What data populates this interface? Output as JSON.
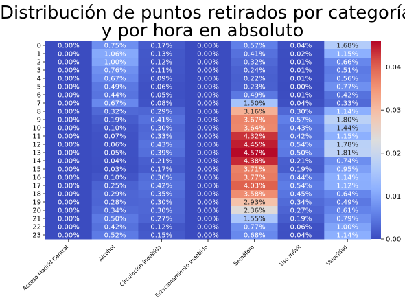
{
  "chart_data": {
    "type": "heatmap",
    "title_lines": [
      "Distribución de puntos retirados por categoría",
      "y por hora en absoluto"
    ],
    "xlabel": "",
    "ylabel": "",
    "columns": [
      "Acceso Madrid Central",
      "Alcohol",
      "Circulación Indebida",
      "Estacionamiento Indebido",
      "Semáforo",
      "Uso móvil",
      "Velocidad"
    ],
    "rows": [
      "0",
      "1",
      "2",
      "3",
      "4",
      "5",
      "6",
      "7",
      "8",
      "9",
      "10",
      "11",
      "12",
      "13",
      "14",
      "15",
      "16",
      "17",
      "18",
      "19",
      "20",
      "21",
      "22",
      "23"
    ],
    "values": [
      [
        0.0,
        0.0075,
        0.0017,
        0.0,
        0.0057,
        0.0004,
        0.0168
      ],
      [
        0.0,
        0.0106,
        0.0013,
        0.0,
        0.0041,
        0.0002,
        0.0115
      ],
      [
        0.0,
        0.01,
        0.0012,
        0.0,
        0.0032,
        0.0001,
        0.0066
      ],
      [
        0.0,
        0.0076,
        0.0011,
        0.0,
        0.0024,
        0.0001,
        0.0051
      ],
      [
        0.0,
        0.0067,
        0.0009,
        0.0,
        0.0022,
        0.0001,
        0.0056
      ],
      [
        0.0,
        0.0049,
        0.0006,
        0.0,
        0.0023,
        0.0,
        0.0077
      ],
      [
        0.0,
        0.0044,
        0.0005,
        0.0,
        0.0049,
        0.0001,
        0.0042
      ],
      [
        0.0,
        0.0067,
        0.0008,
        0.0,
        0.015,
        0.0004,
        0.0033
      ],
      [
        0.0,
        0.0032,
        0.0029,
        0.0,
        0.0316,
        0.003,
        0.0114
      ],
      [
        0.0,
        0.0019,
        0.0041,
        0.0,
        0.0367,
        0.0057,
        0.018
      ],
      [
        0.0,
        0.001,
        0.003,
        0.0,
        0.0364,
        0.0043,
        0.0144
      ],
      [
        0.0,
        0.0007,
        0.0033,
        0.0,
        0.0432,
        0.0042,
        0.0115
      ],
      [
        0.0,
        0.0006,
        0.0043,
        0.0,
        0.0445,
        0.0054,
        0.0178
      ],
      [
        0.0,
        0.0005,
        0.0039,
        0.0,
        0.0457,
        0.005,
        0.0181
      ],
      [
        0.0,
        0.0004,
        0.0021,
        0.0,
        0.0438,
        0.0021,
        0.0074
      ],
      [
        0.0,
        0.0003,
        0.0017,
        0.0,
        0.0371,
        0.0019,
        0.0095
      ],
      [
        0.0,
        0.001,
        0.0036,
        0.0,
        0.0377,
        0.0044,
        0.0114
      ],
      [
        0.0,
        0.0025,
        0.0042,
        0.0,
        0.0403,
        0.0054,
        0.0112
      ],
      [
        0.0,
        0.0029,
        0.0035,
        0.0,
        0.0358,
        0.0045,
        0.0064
      ],
      [
        0.0,
        0.0028,
        0.003,
        0.0,
        0.0293,
        0.0034,
        0.0049
      ],
      [
        0.0,
        0.0034,
        0.003,
        0.0,
        0.0236,
        0.0027,
        0.0061
      ],
      [
        0.0,
        0.005,
        0.0027,
        0.0,
        0.0155,
        0.0019,
        0.0079
      ],
      [
        0.0,
        0.0042,
        0.0012,
        0.0,
        0.0077,
        0.0006,
        0.01
      ],
      [
        0.0,
        0.0052,
        0.0015,
        0.0,
        0.0068,
        0.0004,
        0.0114
      ]
    ],
    "value_labels": [
      [
        "0.00%",
        "0.75%",
        "0.17%",
        "0.00%",
        "0.57%",
        "0.04%",
        "1.68%"
      ],
      [
        "0.00%",
        "1.06%",
        "0.13%",
        "0.00%",
        "0.41%",
        "0.02%",
        "1.15%"
      ],
      [
        "0.00%",
        "1.00%",
        "0.12%",
        "0.00%",
        "0.32%",
        "0.01%",
        "0.66%"
      ],
      [
        "0.00%",
        "0.76%",
        "0.11%",
        "0.00%",
        "0.24%",
        "0.01%",
        "0.51%"
      ],
      [
        "0.00%",
        "0.67%",
        "0.09%",
        "0.00%",
        "0.22%",
        "0.01%",
        "0.56%"
      ],
      [
        "0.00%",
        "0.49%",
        "0.06%",
        "0.00%",
        "0.23%",
        "0.00%",
        "0.77%"
      ],
      [
        "0.00%",
        "0.44%",
        "0.05%",
        "0.00%",
        "0.49%",
        "0.01%",
        "0.42%"
      ],
      [
        "0.00%",
        "0.67%",
        "0.08%",
        "0.00%",
        "1.50%",
        "0.04%",
        "0.33%"
      ],
      [
        "0.00%",
        "0.32%",
        "0.29%",
        "0.00%",
        "3.16%",
        "0.30%",
        "1.14%"
      ],
      [
        "0.00%",
        "0.19%",
        "0.41%",
        "0.00%",
        "3.67%",
        "0.57%",
        "1.80%"
      ],
      [
        "0.00%",
        "0.10%",
        "0.30%",
        "0.00%",
        "3.64%",
        "0.43%",
        "1.44%"
      ],
      [
        "0.00%",
        "0.07%",
        "0.33%",
        "0.00%",
        "4.32%",
        "0.42%",
        "1.15%"
      ],
      [
        "0.00%",
        "0.06%",
        "0.43%",
        "0.00%",
        "4.45%",
        "0.54%",
        "1.78%"
      ],
      [
        "0.00%",
        "0.05%",
        "0.39%",
        "0.00%",
        "4.57%",
        "0.50%",
        "1.81%"
      ],
      [
        "0.00%",
        "0.04%",
        "0.21%",
        "0.00%",
        "4.38%",
        "0.21%",
        "0.74%"
      ],
      [
        "0.00%",
        "0.03%",
        "0.17%",
        "0.00%",
        "3.71%",
        "0.19%",
        "0.95%"
      ],
      [
        "0.00%",
        "0.10%",
        "0.36%",
        "0.00%",
        "3.77%",
        "0.44%",
        "1.14%"
      ],
      [
        "0.00%",
        "0.25%",
        "0.42%",
        "0.00%",
        "4.03%",
        "0.54%",
        "1.12%"
      ],
      [
        "0.00%",
        "0.29%",
        "0.35%",
        "0.00%",
        "3.58%",
        "0.45%",
        "0.64%"
      ],
      [
        "0.00%",
        "0.28%",
        "0.30%",
        "0.00%",
        "2.93%",
        "0.34%",
        "0.49%"
      ],
      [
        "0.00%",
        "0.34%",
        "0.30%",
        "0.00%",
        "2.36%",
        "0.27%",
        "0.61%"
      ],
      [
        "0.00%",
        "0.50%",
        "0.27%",
        "0.00%",
        "1.55%",
        "0.19%",
        "0.79%"
      ],
      [
        "0.00%",
        "0.42%",
        "0.12%",
        "0.00%",
        "0.77%",
        "0.06%",
        "1.00%"
      ],
      [
        "0.00%",
        "0.52%",
        "0.15%",
        "0.00%",
        "0.68%",
        "0.04%",
        "1.14%"
      ]
    ],
    "colormap": "coolwarm",
    "value_range": [
      0.0,
      0.046
    ],
    "colorbar_ticks": [
      0.0,
      0.01,
      0.02,
      0.03,
      0.04
    ],
    "colorbar_tick_labels": [
      "0.00",
      "0.01",
      "0.02",
      "0.03",
      "0.04"
    ],
    "grid": false,
    "colorbar_position": "right"
  }
}
